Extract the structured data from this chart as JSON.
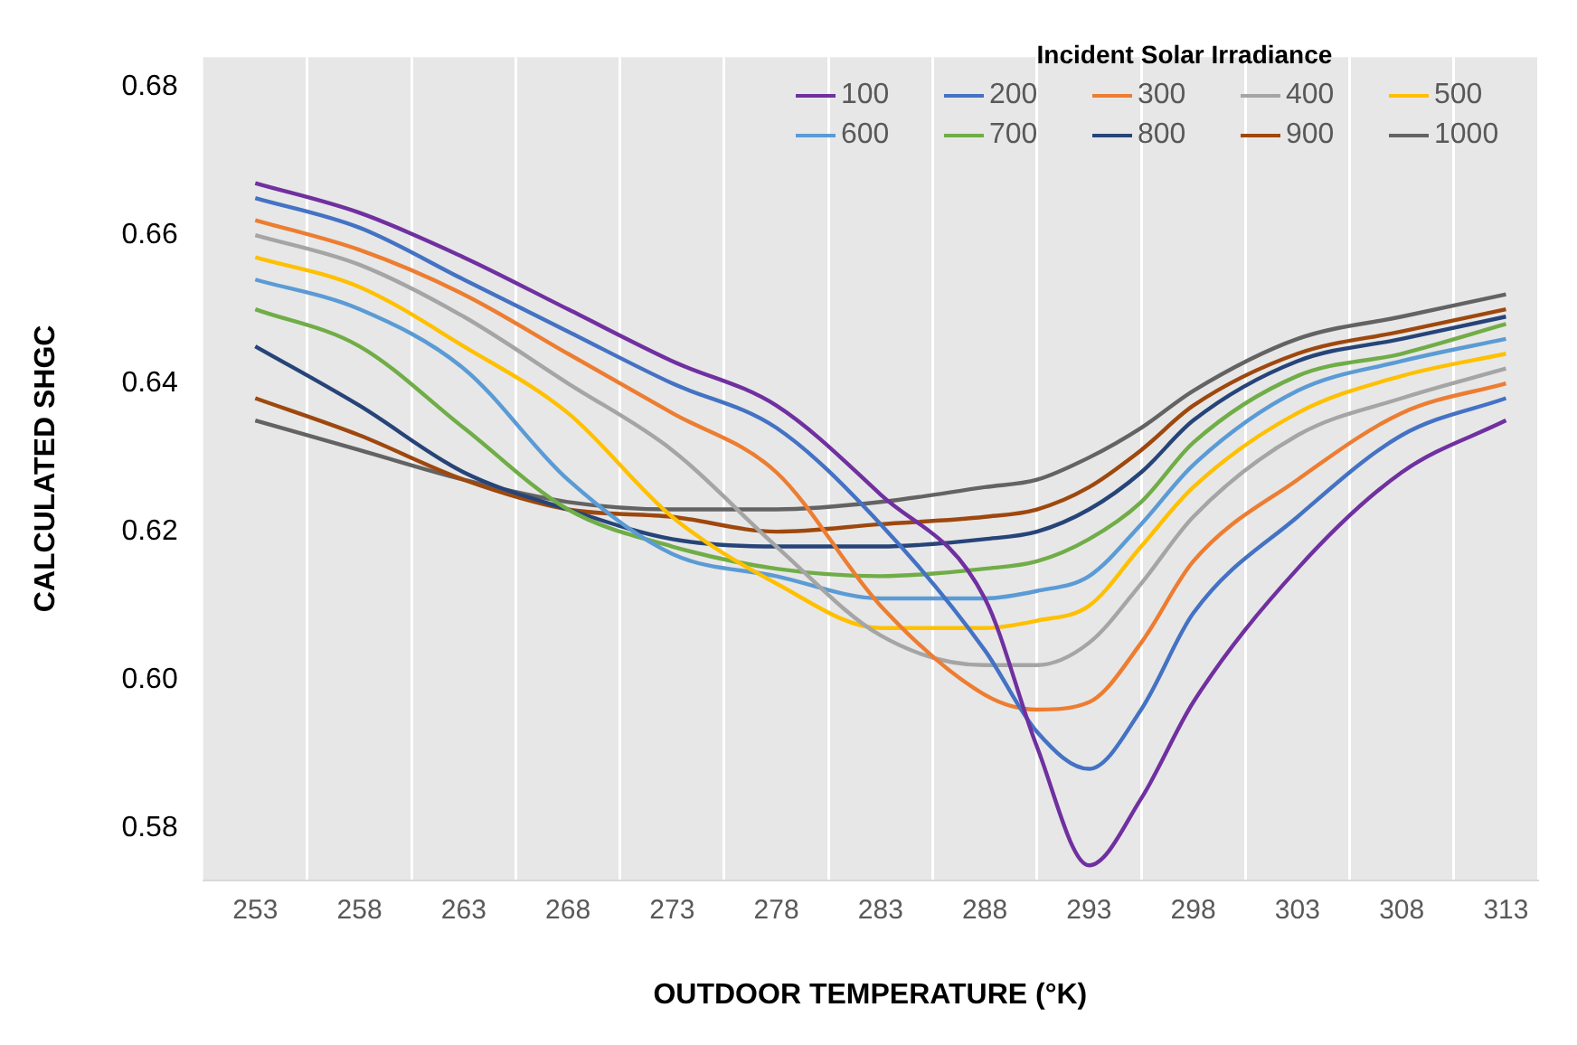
{
  "chart_data": {
    "type": "line",
    "xlabel": "OUTDOOR TEMPERATURE (°K)",
    "ylabel": "CALCULATED SHGC",
    "legend_title": "Incident Solar Irradiance",
    "x": [
      253,
      258,
      263,
      268,
      273,
      278,
      283,
      288,
      290.5,
      293,
      295.5,
      298,
      303,
      308,
      313
    ],
    "xlim": [
      250.5,
      314.5
    ],
    "xticks": [
      253,
      {
        "value": 255.5,
        "label": null
      },
      258,
      {
        "value": 260.5,
        "label": null
      },
      263,
      {
        "value": 265.5,
        "label": null
      },
      268,
      {
        "value": 270.5,
        "label": null
      },
      273,
      {
        "value": 275.5,
        "label": null
      },
      278,
      {
        "value": 280.5,
        "label": null
      },
      283,
      {
        "value": 285.5,
        "label": null
      },
      288,
      {
        "value": 290.5,
        "label": null
      },
      293,
      {
        "value": 295.5,
        "label": null
      },
      298,
      {
        "value": 300.5,
        "label": null
      },
      303,
      {
        "value": 305.5,
        "label": null
      },
      308,
      {
        "value": 310.5,
        "label": null
      },
      313
    ],
    "ylim": [
      0.573,
      0.684
    ],
    "yticks": [
      0.58,
      {
        "value": 0.6,
        "label": "0.60"
      },
      0.62,
      0.64,
      0.66,
      0.68
    ],
    "grid": "x",
    "legend": "top right",
    "marker": "none",
    "line_style": "solid",
    "series": [
      {
        "name": "100",
        "color": "#7030a0",
        "values": [
          0.667,
          0.663,
          0.657,
          0.65,
          0.643,
          0.637,
          0.625,
          0.611,
          0.591,
          0.575,
          0.584,
          0.597,
          0.615,
          0.628,
          0.635
        ]
      },
      {
        "name": "200",
        "color": "#4472c4",
        "values": [
          0.665,
          0.661,
          0.654,
          0.647,
          0.64,
          0.634,
          0.621,
          0.604,
          0.593,
          0.588,
          0.596,
          0.609,
          0.622,
          0.633,
          0.638
        ]
      },
      {
        "name": "300",
        "color": "#ed7d31",
        "values": [
          0.662,
          0.658,
          0.652,
          0.644,
          0.636,
          0.628,
          0.61,
          0.598,
          0.596,
          0.597,
          0.605,
          0.616,
          0.627,
          0.636,
          0.64
        ]
      },
      {
        "name": "400",
        "color": "#a5a5a5",
        "values": [
          0.66,
          0.656,
          0.649,
          0.64,
          0.631,
          0.618,
          0.606,
          0.602,
          0.602,
          0.605,
          0.613,
          0.622,
          0.633,
          0.638,
          0.642
        ]
      },
      {
        "name": "500",
        "color": "#ffc000",
        "values": [
          0.657,
          0.653,
          0.645,
          0.636,
          0.622,
          0.613,
          0.607,
          0.607,
          0.608,
          0.61,
          0.618,
          0.626,
          0.636,
          0.641,
          0.644
        ]
      },
      {
        "name": "600",
        "color": "#5b9bd5",
        "values": [
          0.654,
          0.65,
          0.642,
          0.627,
          0.617,
          0.614,
          0.611,
          0.611,
          0.612,
          0.614,
          0.621,
          0.629,
          0.639,
          0.643,
          0.646
        ]
      },
      {
        "name": "700",
        "color": "#70ad47",
        "values": [
          0.65,
          0.645,
          0.634,
          0.623,
          0.618,
          0.615,
          0.614,
          0.615,
          0.616,
          0.619,
          0.624,
          0.632,
          0.641,
          0.644,
          0.648
        ]
      },
      {
        "name": "800",
        "color": "#264478",
        "values": [
          0.645,
          0.637,
          0.628,
          0.623,
          0.619,
          0.618,
          0.618,
          0.619,
          0.62,
          0.623,
          0.628,
          0.635,
          0.643,
          0.646,
          0.649
        ]
      },
      {
        "name": "900",
        "color": "#9e480e",
        "values": [
          0.638,
          0.633,
          0.627,
          0.623,
          0.622,
          0.62,
          0.621,
          0.622,
          0.623,
          0.626,
          0.631,
          0.637,
          0.644,
          0.647,
          0.65
        ]
      },
      {
        "name": "1000",
        "color": "#636363",
        "values": [
          0.635,
          0.631,
          0.627,
          0.624,
          0.623,
          0.623,
          0.624,
          0.626,
          0.627,
          0.63,
          0.634,
          0.639,
          0.646,
          0.649,
          0.652
        ]
      }
    ]
  }
}
